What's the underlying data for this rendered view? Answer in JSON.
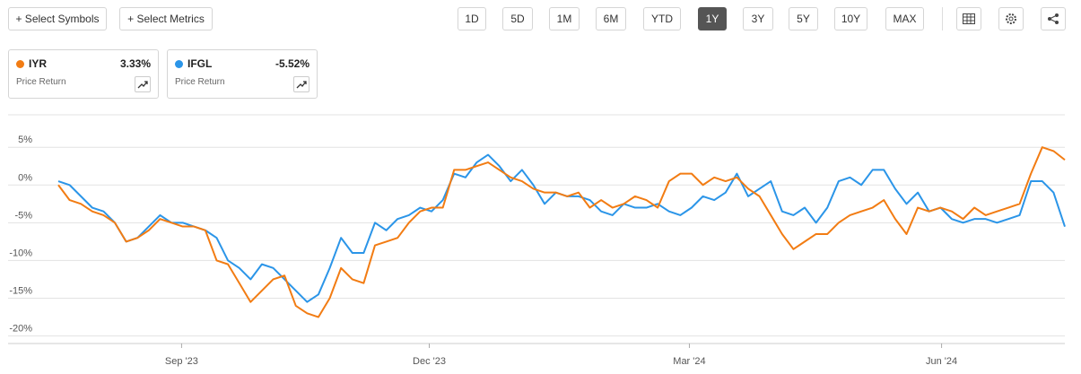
{
  "toolbar": {
    "symbols_button": "+ Select Symbols",
    "metrics_button": "+ Select Metrics",
    "ranges": [
      "1D",
      "5D",
      "1M",
      "6M",
      "YTD",
      "1Y",
      "3Y",
      "5Y",
      "10Y",
      "MAX"
    ],
    "active_range": "1Y"
  },
  "chart_data": {
    "type": "line",
    "series": [
      {
        "name": "IYR",
        "color": "#f27c13",
        "metric": "Price Return",
        "change": "3.33%",
        "values": [
          0,
          -2,
          -2.5,
          -3.5,
          -4,
          -5,
          -7.5,
          -7,
          -6,
          -4.5,
          -5,
          -5.5,
          -5.5,
          -6,
          -10,
          -10.5,
          -13,
          -15.5,
          -14,
          -12.5,
          -12,
          -16,
          -17,
          -17.5,
          -15,
          -11,
          -12.5,
          -13,
          -8,
          -7.5,
          -7,
          -5,
          -3.5,
          -3,
          -3,
          2,
          2,
          2.5,
          3,
          2,
          1,
          0.5,
          -0.5,
          -1,
          -1,
          -1.5,
          -1,
          -3,
          -2,
          -3,
          -2.5,
          -1.5,
          -2,
          -3,
          0.5,
          1.5,
          1.5,
          0,
          1,
          0.5,
          1,
          -0.5,
          -1.5,
          -4,
          -6.5,
          -8.5,
          -7.5,
          -6.5,
          -6.5,
          -5,
          -4,
          -3.5,
          -3,
          -2,
          -4.5,
          -6.5,
          -3,
          -3.5,
          -3,
          -3.5,
          -4.5,
          -3,
          -4,
          -3.5,
          -3,
          -2.5,
          1.5,
          5,
          4.5,
          3.33
        ]
      },
      {
        "name": "IFGL",
        "color": "#2b95e8",
        "metric": "Price Return",
        "change": "-5.52%",
        "values": [
          0.5,
          0,
          -1.5,
          -3,
          -3.5,
          -5,
          -7.5,
          -7,
          -5.5,
          -4,
          -5,
          -5,
          -5.5,
          -6,
          -7,
          -10,
          -11,
          -12.5,
          -10.5,
          -11,
          -12.5,
          -14,
          -15.5,
          -14.5,
          -11,
          -7,
          -9,
          -9,
          -5,
          -6,
          -4.5,
          -4,
          -3,
          -3.5,
          -2,
          1.5,
          1,
          3,
          4,
          2.5,
          0.5,
          2,
          0,
          -2.5,
          -1,
          -1.5,
          -1.5,
          -2,
          -3.5,
          -4,
          -2.5,
          -3,
          -3,
          -2.5,
          -3.5,
          -4,
          -3,
          -1.5,
          -2,
          -1,
          1.5,
          -1.5,
          -0.5,
          0.5,
          -3.5,
          -4,
          -3,
          -5,
          -3,
          0.5,
          1,
          0,
          2,
          2,
          -0.5,
          -2.5,
          -1,
          -3.5,
          -3,
          -4.5,
          -5,
          -4.5,
          -4.5,
          -5,
          -4.5,
          -4,
          0.5,
          0.5,
          -1,
          -5.52
        ]
      }
    ],
    "x": [
      0,
      1,
      2,
      3,
      4,
      5,
      6,
      7,
      8,
      9,
      10,
      11,
      12,
      13,
      14,
      15,
      16,
      17,
      18,
      19,
      20,
      21,
      22,
      23,
      24,
      25,
      26,
      27,
      28,
      29,
      30,
      31,
      32,
      33,
      34,
      35,
      36,
      37,
      38,
      39,
      40,
      41,
      42,
      43,
      44,
      45,
      46,
      47,
      48,
      49,
      50,
      51,
      52,
      53,
      54,
      55,
      56,
      57,
      58,
      59,
      60,
      61,
      62,
      63,
      64,
      65,
      66,
      67,
      68,
      69,
      70,
      71,
      72,
      73,
      74,
      75,
      76,
      77,
      78,
      79,
      80,
      81,
      82,
      83,
      84,
      85,
      86,
      87,
      88,
      89
    ],
    "xlim": [
      0,
      89
    ],
    "xticks": [
      {
        "value": 10.9,
        "label": "Sep '23"
      },
      {
        "value": 32.8,
        "label": "Dec '23"
      },
      {
        "value": 55.8,
        "label": "Mar '24"
      },
      {
        "value": 78.1,
        "label": "Jun '24"
      }
    ],
    "ylim": [
      -21,
      9.3
    ],
    "yticks": [
      {
        "value": 5,
        "label": "5%"
      },
      {
        "value": 0,
        "label": "0%"
      },
      {
        "value": -5,
        "label": "-5%"
      },
      {
        "value": -10,
        "label": "-10%"
      },
      {
        "value": -15,
        "label": "-15%"
      },
      {
        "value": -20,
        "label": "-20%"
      }
    ],
    "grid": true
  }
}
